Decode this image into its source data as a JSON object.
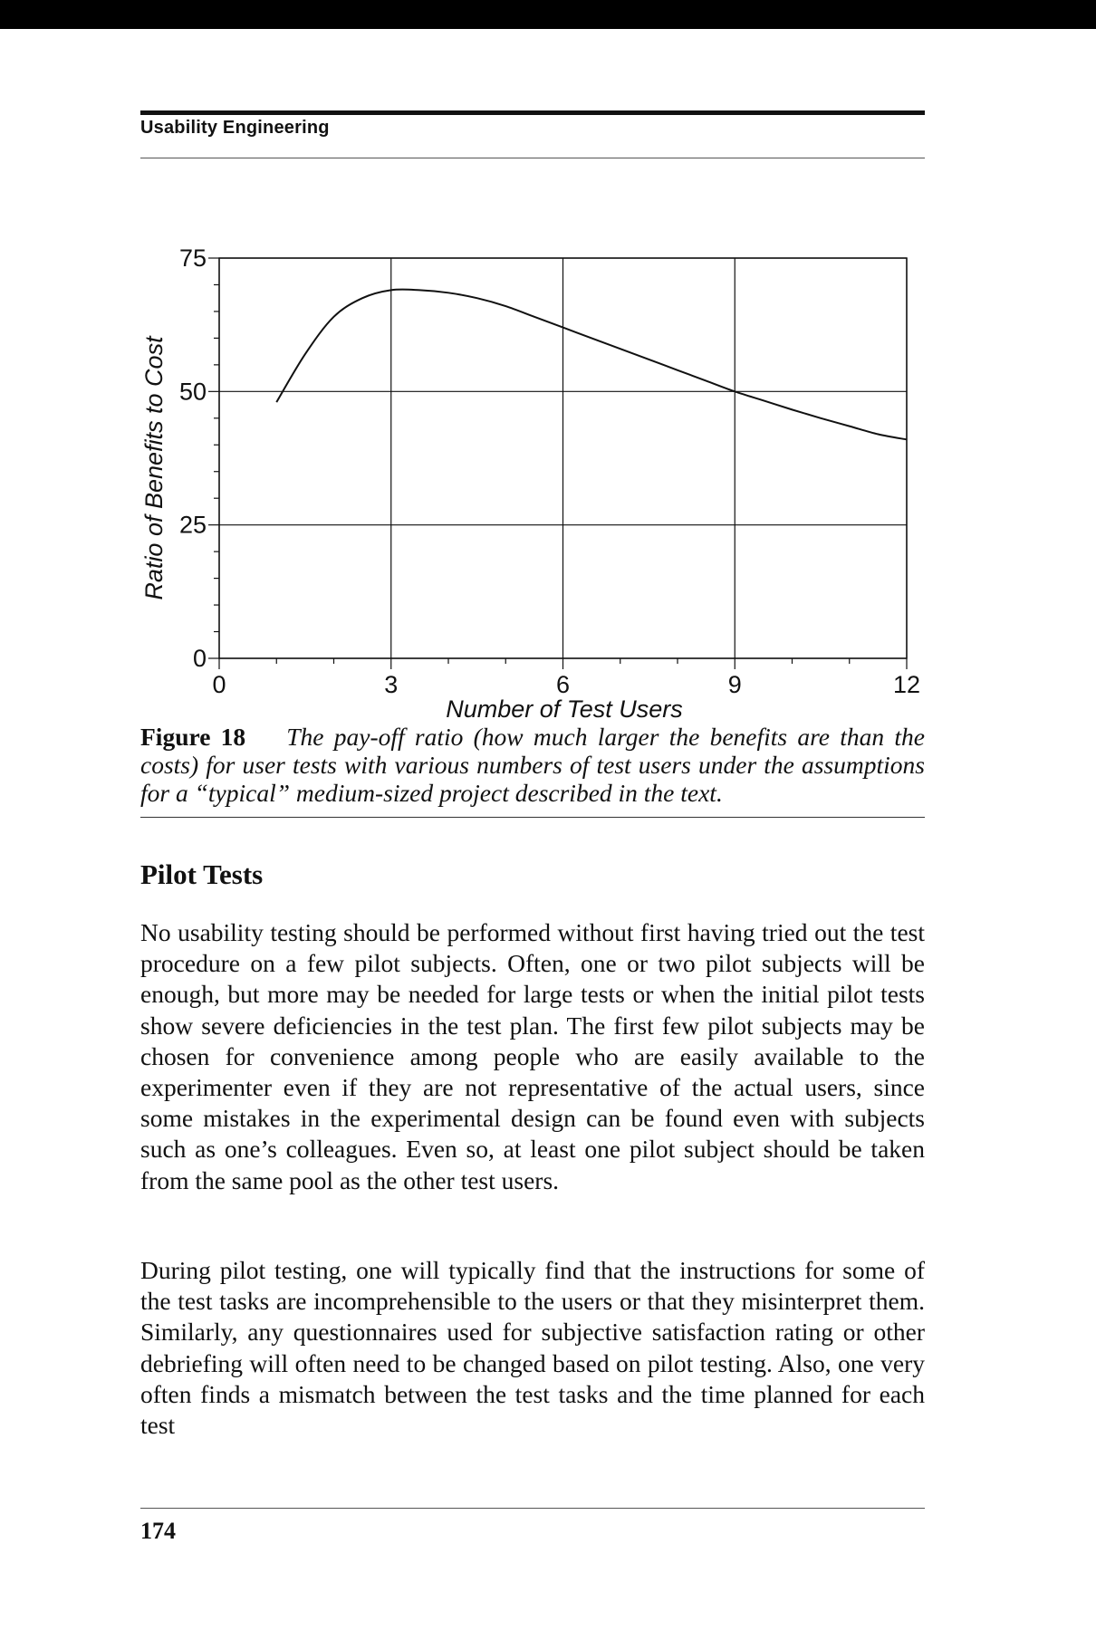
{
  "header": {
    "title": "Usability Engineering"
  },
  "chart_data": {
    "type": "line",
    "title": "",
    "xlabel": "Number of Test Users",
    "ylabel": "Ratio of Benefits to Cost",
    "xlim": [
      0,
      12
    ],
    "ylim": [
      0,
      75
    ],
    "x_ticks": [
      "0",
      "3",
      "6",
      "9",
      "12"
    ],
    "y_ticks": [
      "0",
      "25",
      "50",
      "75"
    ],
    "grid": true,
    "series": [
      {
        "x": [
          1,
          1.5,
          2,
          2.5,
          3,
          3.5,
          4,
          4.5,
          5,
          5.5,
          6,
          6.5,
          7,
          7.5,
          8,
          8.5,
          9,
          9.5,
          10,
          10.5,
          11,
          11.5,
          12
        ],
        "y": [
          48,
          57,
          64,
          67.5,
          69,
          69,
          68.5,
          67.5,
          66,
          64,
          62,
          60,
          58,
          56,
          54,
          52,
          50,
          48.3,
          46.6,
          45,
          43.5,
          42,
          41
        ]
      }
    ]
  },
  "caption": {
    "label": "Figure 18",
    "text": "The pay-off ratio (how much larger the benefits are than the costs) for user tests with various numbers of test users under the assumptions for a “typical” medium-sized project described in the text."
  },
  "section": {
    "heading": "Pilot Tests"
  },
  "paragraphs": [
    "No usability testing should be performed without first having tried out the test procedure on a few pilot subjects. Often, one or two pilot subjects will be enough, but more may be needed for large tests or when the initial pilot tests show severe deficiencies in the test plan. The first few pilot subjects may be chosen for convenience among people who are easily available to the experimenter even if they are not representative of the actual users, since some mistakes in the experimental design can be found even with subjects such as one’s colleagues. Even so, at least one pilot subject should be taken from the same pool as the other test users.",
    "During pilot testing, one will typically find that the instructions for some of the test tasks are incomprehensible to the users or that they misinterpret them. Similarly, any questionnaires used for subjective satisfaction rating or other debriefing will often need to be changed based on pilot testing. Also, one very often finds a mismatch between the test tasks and the time planned for each test"
  ],
  "footer": {
    "page_number": "174"
  }
}
